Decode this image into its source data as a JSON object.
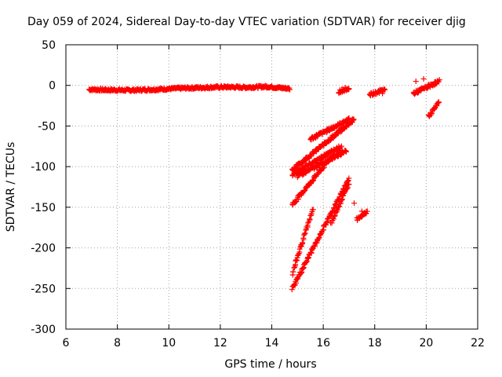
{
  "chart_data": {
    "type": "scatter",
    "title": "Day 059 of 2024, Sidereal Day-to-day VTEC variation (SDTVAR) for receiver djig",
    "xlabel": "GPS time / hours",
    "ylabel": "SDTVAR / TECUs",
    "xlim": [
      6,
      22
    ],
    "ylim": [
      -300,
      50
    ],
    "xticks": [
      6,
      8,
      10,
      12,
      14,
      16,
      18,
      20,
      22
    ],
    "yticks": [
      -300,
      -250,
      -200,
      -150,
      -100,
      -50,
      0,
      50
    ],
    "grid": true,
    "marker": "+",
    "color": "#ff0000",
    "series": [
      {
        "segments": [
          {
            "x": [
              6.9,
              14.7
            ],
            "y": [
              -5,
              -5
            ],
            "profile": [
              [
                6.9,
                -5
              ],
              [
                7.5,
                -5.5
              ],
              [
                8.5,
                -6
              ],
              [
                9.5,
                -5
              ],
              [
                10.5,
                -3.5
              ],
              [
                11.5,
                -2.5
              ],
              [
                12.3,
                -2
              ],
              [
                13,
                -2.5
              ],
              [
                13.8,
                -1.5
              ],
              [
                14.7,
                -4
              ]
            ]
          },
          {
            "x": [
              14.8,
              17.2
            ],
            "y": [
              -104,
              -42
            ]
          },
          {
            "x": [
              15.5,
              17.0
            ],
            "y": [
              -66,
              -42
            ]
          },
          {
            "x": [
              14.8,
              16.7
            ],
            "y": [
              -110,
              -75
            ]
          },
          {
            "x": [
              15.0,
              16.9
            ],
            "y": [
              -112,
              -80
            ]
          },
          {
            "x": [
              14.8,
              16.4
            ],
            "y": [
              -147,
              -85
            ]
          },
          {
            "x": [
              14.8,
              15.6
            ],
            "y": [
              -232,
              -152
            ]
          },
          {
            "x": [
              14.8,
              17.0
            ],
            "y": [
              -250,
              -115
            ]
          },
          {
            "x": [
              16.3,
              17.0
            ],
            "y": [
              -170,
              -120
            ]
          },
          {
            "x": [
              16.6,
              17.0
            ],
            "y": [
              -8,
              -3
            ]
          },
          {
            "x": [
              17.8,
              18.4
            ],
            "y": [
              -12,
              -5
            ]
          },
          {
            "x": [
              19.5,
              20.5
            ],
            "y": [
              -10,
              5
            ]
          },
          {
            "x": [
              20.1,
              20.5
            ],
            "y": [
              -38,
              -20
            ]
          },
          {
            "x": [
              17.3,
              17.7
            ],
            "y": [
              -165,
              -155
            ]
          }
        ],
        "points": [
          [
            17.2,
            -145
          ],
          [
            16.6,
            -80
          ],
          [
            18.3,
            -10
          ],
          [
            19.6,
            5
          ],
          [
            19.9,
            8
          ],
          [
            17.5,
            -155
          ]
        ]
      }
    ]
  }
}
